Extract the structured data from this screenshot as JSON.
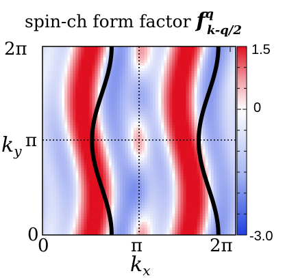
{
  "chart_data": {
    "type": "heatmap",
    "title": {
      "prefix": "spin-ch form factor ",
      "symbol": "f",
      "superscript": "q",
      "subscript": "k-q/2"
    },
    "xlabel": {
      "symbol": "k",
      "subscript": "x"
    },
    "ylabel": {
      "symbol": "k",
      "subscript": "y"
    },
    "x_ticks": [
      "0",
      "π",
      "2π"
    ],
    "y_ticks": [
      "0",
      "π",
      "2π"
    ],
    "xlim": [
      0,
      6.2832
    ],
    "ylim": [
      0,
      6.2832
    ],
    "colorbar": {
      "ticks": [
        "1.5",
        "0",
        "-3.0"
      ],
      "range": [
        -3.0,
        1.5
      ],
      "colors": {
        "max": "#e01020",
        "zero": "#ffffff",
        "min": "#2040e0"
      }
    },
    "guide_lines": {
      "x": 3.1416,
      "y": 3.1416,
      "style": "dotted"
    },
    "fermi_surface": {
      "color": "#000000",
      "curves": [
        {
          "center_x": 1.93,
          "amplitude": 0.32
        },
        {
          "center_x": 5.4,
          "amplitude": 0.32
        }
      ]
    }
  }
}
